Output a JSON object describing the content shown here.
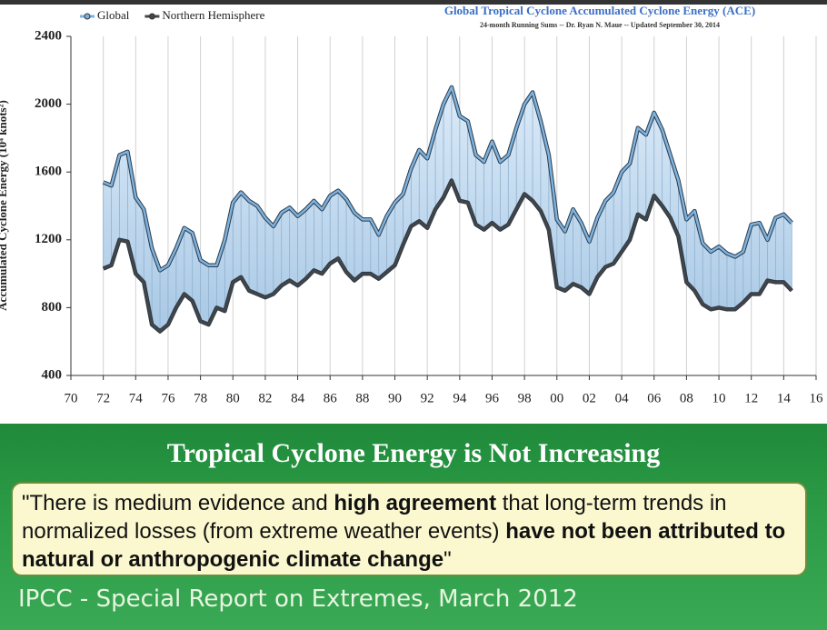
{
  "chart_data": {
    "type": "line",
    "title": "Global Tropical Cyclone Accumulated Cyclone Energy (ACE)",
    "subtitle": "24-month Running Sums -- Dr. Ryan N. Maue -- Updated September 30, 2014",
    "y_label": "Accumulated Cyclone Energy (10⁴ knots²)",
    "x": [
      1972,
      1972.5,
      1973,
      1973.5,
      1974,
      1974.5,
      1975,
      1975.5,
      1976,
      1976.5,
      1977,
      1977.5,
      1978,
      1978.5,
      1979,
      1979.5,
      1980,
      1980.5,
      1981,
      1981.5,
      1982,
      1982.5,
      1983,
      1983.5,
      1984,
      1984.5,
      1985,
      1985.5,
      1986,
      1986.5,
      1987,
      1987.5,
      1988,
      1988.5,
      1989,
      1989.5,
      1990,
      1990.5,
      1991,
      1991.5,
      1992,
      1992.5,
      1993,
      1993.5,
      1994,
      1994.5,
      1995,
      1995.5,
      1996,
      1996.5,
      1997,
      1997.5,
      1998,
      1998.5,
      1999,
      1999.5,
      2000,
      2000.5,
      2001,
      2001.5,
      2002,
      2002.5,
      2003,
      2003.5,
      2004,
      2004.5,
      2005,
      2005.5,
      2006,
      2006.5,
      2007,
      2007.5,
      2008,
      2008.5,
      2009,
      2009.5,
      2010,
      2010.5,
      2011,
      2011.5,
      2012,
      2012.5,
      2013,
      2013.5,
      2014,
      2014.5
    ],
    "series": [
      {
        "name": "Global",
        "color": "#7fb3de",
        "values": [
          1540,
          1520,
          1700,
          1720,
          1450,
          1380,
          1150,
          1020,
          1050,
          1150,
          1270,
          1240,
          1080,
          1050,
          1050,
          1200,
          1420,
          1480,
          1430,
          1400,
          1330,
          1280,
          1360,
          1390,
          1340,
          1380,
          1430,
          1380,
          1460,
          1490,
          1440,
          1360,
          1320,
          1320,
          1230,
          1340,
          1420,
          1470,
          1620,
          1730,
          1680,
          1850,
          2000,
          2100,
          1930,
          1900,
          1700,
          1660,
          1780,
          1660,
          1700,
          1860,
          2000,
          2070,
          1900,
          1700,
          1320,
          1250,
          1380,
          1300,
          1190,
          1330,
          1430,
          1480,
          1600,
          1650,
          1860,
          1820,
          1950,
          1850,
          1700,
          1550,
          1320,
          1370,
          1180,
          1130,
          1160,
          1120,
          1100,
          1130,
          1290,
          1300,
          1200,
          1330,
          1350,
          1300
        ]
      },
      {
        "name": "Northern Hemisphere",
        "color": "#454545",
        "values": [
          1030,
          1050,
          1200,
          1190,
          1000,
          950,
          700,
          660,
          700,
          800,
          880,
          840,
          720,
          700,
          800,
          780,
          950,
          980,
          900,
          880,
          860,
          880,
          930,
          960,
          930,
          970,
          1020,
          1000,
          1060,
          1090,
          1010,
          960,
          1000,
          1000,
          970,
          1010,
          1050,
          1170,
          1280,
          1310,
          1270,
          1380,
          1450,
          1550,
          1430,
          1420,
          1290,
          1260,
          1300,
          1260,
          1290,
          1380,
          1470,
          1430,
          1370,
          1260,
          920,
          900,
          940,
          920,
          880,
          980,
          1040,
          1060,
          1130,
          1200,
          1350,
          1320,
          1460,
          1400,
          1330,
          1220,
          950,
          900,
          820,
          790,
          800,
          790,
          790,
          830,
          880,
          880,
          960,
          950,
          950,
          900
        ]
      }
    ],
    "xlim": [
      1970,
      2016
    ],
    "xticks": [
      {
        "value": 1970,
        "label": "70"
      },
      {
        "value": 1972,
        "label": "72"
      },
      {
        "value": 1974,
        "label": "74"
      },
      {
        "value": 1976,
        "label": "76"
      },
      {
        "value": 1978,
        "label": "78"
      },
      {
        "value": 1980,
        "label": "80"
      },
      {
        "value": 1982,
        "label": "82"
      },
      {
        "value": 1984,
        "label": "84"
      },
      {
        "value": 1986,
        "label": "86"
      },
      {
        "value": 1988,
        "label": "88"
      },
      {
        "value": 1990,
        "label": "90"
      },
      {
        "value": 1992,
        "label": "92"
      },
      {
        "value": 1994,
        "label": "94"
      },
      {
        "value": 1996,
        "label": "96"
      },
      {
        "value": 1998,
        "label": "98"
      },
      {
        "value": 2000,
        "label": "00"
      },
      {
        "value": 2002,
        "label": "02"
      },
      {
        "value": 2004,
        "label": "04"
      },
      {
        "value": 2006,
        "label": "06"
      },
      {
        "value": 2008,
        "label": "08"
      },
      {
        "value": 2010,
        "label": "10"
      },
      {
        "value": 2012,
        "label": "12"
      },
      {
        "value": 2014,
        "label": "14"
      },
      {
        "value": 2016,
        "label": "16"
      }
    ],
    "ylim": [
      400,
      2400
    ],
    "yticks": [
      400,
      800,
      1200,
      1600,
      2000,
      2400
    ],
    "grid": true,
    "legend": "top-left"
  },
  "slide": {
    "heading": "Tropical Cyclone Energy is Not Increasing",
    "quote": [
      {
        "text": "\"There is medium evidence and ",
        "bold": false
      },
      {
        "text": "high agreement",
        "bold": true
      },
      {
        "text": " that long-term trends in normalized losses (from extreme weather events) ",
        "bold": false
      },
      {
        "text": "have not been attributed to natural or anthropogenic climate change",
        "bold": true
      },
      {
        "text": "\"",
        "bold": false
      }
    ],
    "citation": "IPCC - Special Report on Extremes, March 2012"
  }
}
